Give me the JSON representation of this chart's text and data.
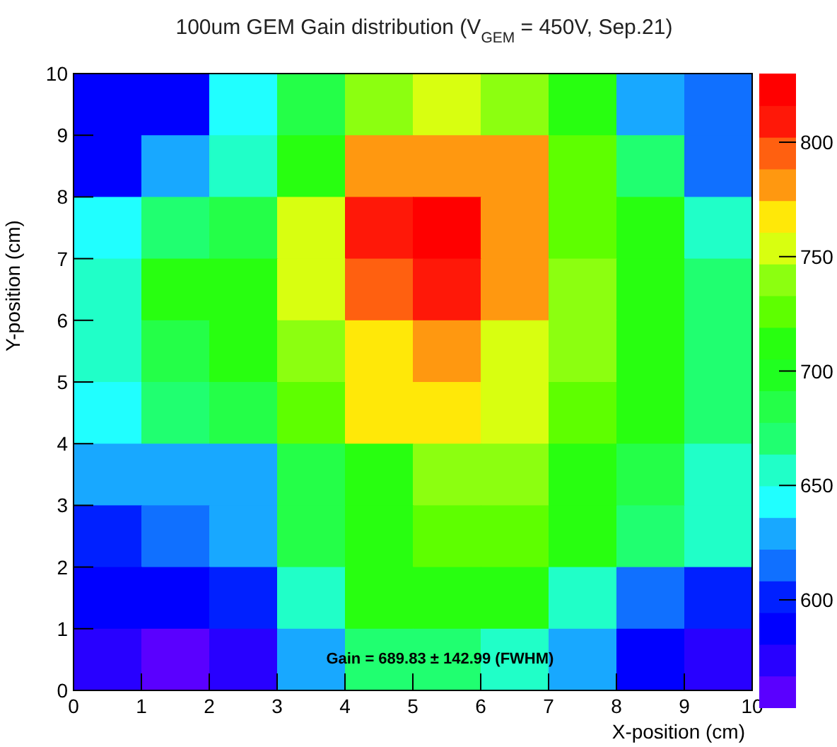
{
  "chart_data": {
    "type": "heatmap",
    "title": "100um GEM Gain distribution (V$_{GEM}$ = 450V, Sep.21)",
    "xlabel": "X-position (cm)",
    "ylabel": "Y-position (cm)",
    "xlim": [
      0,
      10
    ],
    "xticks": [
      0,
      1,
      2,
      3,
      4,
      5,
      6,
      7,
      8,
      9,
      10
    ],
    "ylim": [
      0,
      10
    ],
    "yticks": [
      0,
      1,
      2,
      3,
      4,
      5,
      6,
      7,
      8,
      9,
      10
    ],
    "cells": [
      [
        588,
        588,
        643,
        685,
        740,
        754,
        740,
        712,
        629,
        615
      ],
      [
        588,
        629,
        657,
        712,
        781,
        781,
        781,
        726,
        671,
        615
      ],
      [
        643,
        671,
        685,
        754,
        809,
        823,
        781,
        726,
        712,
        657
      ],
      [
        657,
        712,
        712,
        754,
        795,
        809,
        781,
        740,
        712,
        671
      ],
      [
        657,
        685,
        712,
        740,
        768,
        781,
        754,
        740,
        712,
        671
      ],
      [
        643,
        671,
        685,
        726,
        768,
        768,
        754,
        726,
        712,
        671
      ],
      [
        629,
        629,
        629,
        685,
        712,
        740,
        740,
        712,
        685,
        657
      ],
      [
        602,
        615,
        629,
        685,
        712,
        726,
        726,
        712,
        671,
        657
      ],
      [
        588,
        588,
        602,
        657,
        712,
        712,
        712,
        657,
        615,
        602
      ],
      [
        574,
        560,
        574,
        629,
        671,
        671,
        657,
        629,
        588,
        574
      ]
    ],
    "clim": [
      553,
      830
    ],
    "cticks": [
      600,
      650,
      700,
      750,
      800
    ],
    "colors": [
      "#5a00ff",
      "#2800ff",
      "#0000ff",
      "#0020ff",
      "#1070ff",
      "#18a8ff",
      "#20ffff",
      "#20ffc8",
      "#20ff70",
      "#24ff48",
      "#20ff20",
      "#28ff10",
      "#5eff00",
      "#8cff10",
      "#d8ff10",
      "#ffe808",
      "#ff9810",
      "#ff6010",
      "#ff1808",
      "#ff0000"
    ],
    "annotations": [
      "Gain = 689.83 ± 142.99 (FWHM)"
    ]
  }
}
